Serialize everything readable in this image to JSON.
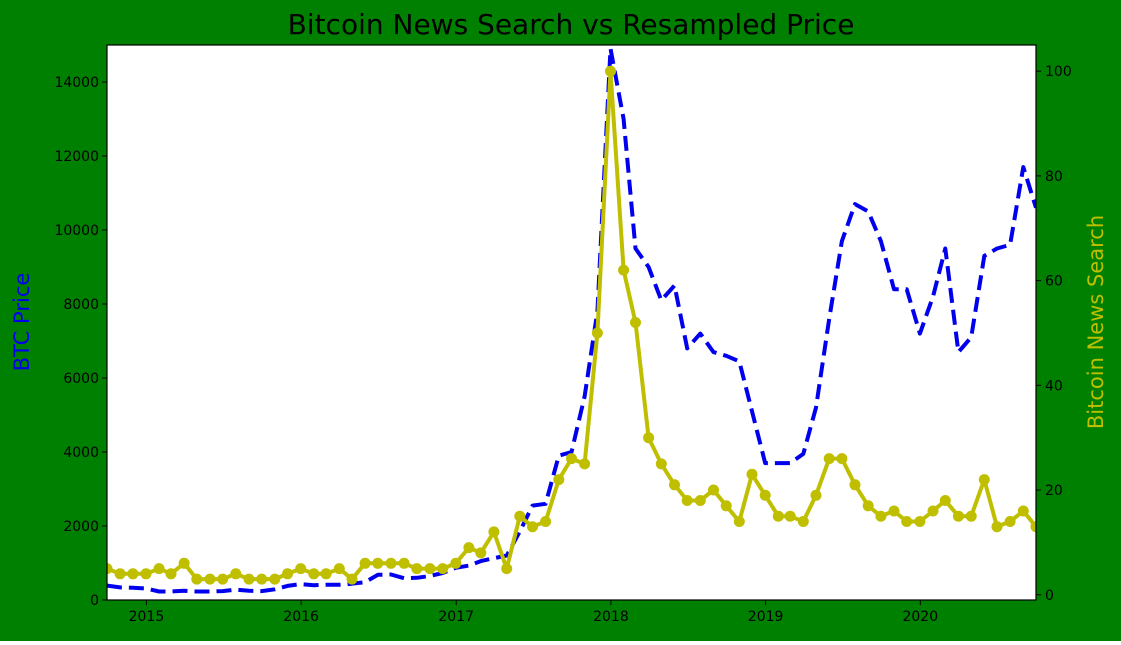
{
  "colors": {
    "background": "#008000",
    "plot_area": "#ffffff",
    "price_line": "#0000ee",
    "search_line": "#bfbf00",
    "left_label": "#0000ee",
    "right_label": "#bfbf00"
  },
  "chart_data": {
    "type": "line",
    "title": "Bitcoin News Search vs Resampled Price",
    "xlabel": "",
    "ylabel_left": "BTC Price",
    "ylabel_right": "Bitcoin News Search",
    "x_tick_labels": [
      "2015",
      "2016",
      "2017",
      "2018",
      "2019",
      "2020"
    ],
    "y_left_ticks": [
      "0",
      "2000",
      "4000",
      "6000",
      "8000",
      "10000",
      "12000",
      "14000"
    ],
    "y_right_ticks": [
      "0",
      "20",
      "40",
      "60",
      "80",
      "100"
    ],
    "xlim": [
      "2014-09-30",
      "2020-09-30"
    ],
    "ylim_left": [
      0,
      15000
    ],
    "ylim_right": [
      -1,
      105
    ],
    "grid": false,
    "legend": "none",
    "series": [
      {
        "axis": "left",
        "style": "dashed",
        "x": [
          "2014-09-30",
          "2014-10-31",
          "2014-11-30",
          "2014-12-31",
          "2015-01-31",
          "2015-02-28",
          "2015-03-31",
          "2015-04-30",
          "2015-05-31",
          "2015-06-30",
          "2015-07-31",
          "2015-08-31",
          "2015-09-30",
          "2015-10-31",
          "2015-11-30",
          "2015-12-31",
          "2016-01-31",
          "2016-02-29",
          "2016-03-31",
          "2016-04-30",
          "2016-05-31",
          "2016-06-30",
          "2016-07-31",
          "2016-08-31",
          "2016-09-30",
          "2016-10-31",
          "2016-11-30",
          "2016-12-31",
          "2017-01-31",
          "2017-02-28",
          "2017-03-31",
          "2017-04-30",
          "2017-05-31",
          "2017-06-30",
          "2017-07-31",
          "2017-08-31",
          "2017-09-30",
          "2017-10-31",
          "2017-11-30",
          "2017-12-31",
          "2018-01-31",
          "2018-02-28",
          "2018-03-31",
          "2018-04-30",
          "2018-05-31",
          "2018-06-30",
          "2018-07-31",
          "2018-08-31",
          "2018-09-30",
          "2018-10-31",
          "2018-11-30",
          "2018-12-31",
          "2019-01-31",
          "2019-02-28",
          "2019-03-31",
          "2019-04-30",
          "2019-05-31",
          "2019-06-30",
          "2019-07-31",
          "2019-08-31",
          "2019-09-30",
          "2019-10-31",
          "2019-11-30",
          "2019-12-31",
          "2020-01-31",
          "2020-02-29",
          "2020-03-31",
          "2020-04-30",
          "2020-05-31",
          "2020-06-30",
          "2020-07-31",
          "2020-08-31",
          "2020-09-30"
        ],
        "values": [
          390,
          340,
          330,
          310,
          230,
          230,
          250,
          230,
          230,
          240,
          280,
          250,
          240,
          290,
          380,
          430,
          400,
          410,
          410,
          440,
          480,
          680,
          690,
          590,
          600,
          650,
          730,
          870,
          930,
          1050,
          1130,
          1200,
          1850,
          2550,
          2600,
          3900,
          4000,
          5500,
          7800,
          14900,
          13000,
          9500,
          9000,
          8100,
          8500,
          6800,
          7200,
          6700,
          6600,
          6450,
          5100,
          3700,
          3700,
          3700,
          3950,
          5200,
          7600,
          9700,
          10700,
          10500,
          9700,
          8400,
          8400,
          7200,
          8200,
          9500,
          6700,
          7100,
          9300,
          9500,
          9600,
          11700,
          10600
        ]
      },
      {
        "axis": "right",
        "style": "solid-markers",
        "x": [
          "2014-09-30",
          "2014-10-31",
          "2014-11-30",
          "2014-12-31",
          "2015-01-31",
          "2015-02-28",
          "2015-03-31",
          "2015-04-30",
          "2015-05-31",
          "2015-06-30",
          "2015-07-31",
          "2015-08-31",
          "2015-09-30",
          "2015-10-31",
          "2015-11-30",
          "2015-12-31",
          "2016-01-31",
          "2016-02-29",
          "2016-03-31",
          "2016-04-30",
          "2016-05-31",
          "2016-06-30",
          "2016-07-31",
          "2016-08-31",
          "2016-09-30",
          "2016-10-31",
          "2016-11-30",
          "2016-12-31",
          "2017-01-31",
          "2017-02-28",
          "2017-03-31",
          "2017-04-30",
          "2017-05-31",
          "2017-06-30",
          "2017-07-31",
          "2017-08-31",
          "2017-09-30",
          "2017-10-31",
          "2017-11-30",
          "2017-12-31",
          "2018-01-31",
          "2018-02-28",
          "2018-03-31",
          "2018-04-30",
          "2018-05-31",
          "2018-06-30",
          "2018-07-31",
          "2018-08-31",
          "2018-09-30",
          "2018-10-31",
          "2018-11-30",
          "2018-12-31",
          "2019-01-31",
          "2019-02-28",
          "2019-03-31",
          "2019-04-30",
          "2019-05-31",
          "2019-06-30",
          "2019-07-31",
          "2019-08-31",
          "2019-09-30",
          "2019-10-31",
          "2019-11-30",
          "2019-12-31",
          "2020-01-31",
          "2020-02-29",
          "2020-03-31",
          "2020-04-30",
          "2020-05-31",
          "2020-06-30",
          "2020-07-31",
          "2020-08-31",
          "2020-09-30"
        ],
        "values": [
          5,
          4,
          4,
          4,
          5,
          4,
          6,
          3,
          3,
          3,
          4,
          3,
          3,
          3,
          4,
          5,
          4,
          4,
          5,
          3,
          6,
          6,
          6,
          6,
          5,
          5,
          5,
          6,
          9,
          8,
          12,
          5,
          15,
          13,
          14,
          22,
          26,
          25,
          50,
          100,
          62,
          52,
          30,
          25,
          21,
          18,
          18,
          20,
          17,
          14,
          23,
          19,
          15,
          15,
          14,
          19,
          26,
          26,
          21,
          17,
          15,
          16,
          14,
          14,
          16,
          18,
          15,
          15,
          22,
          13,
          14,
          16,
          13
        ]
      }
    ]
  }
}
